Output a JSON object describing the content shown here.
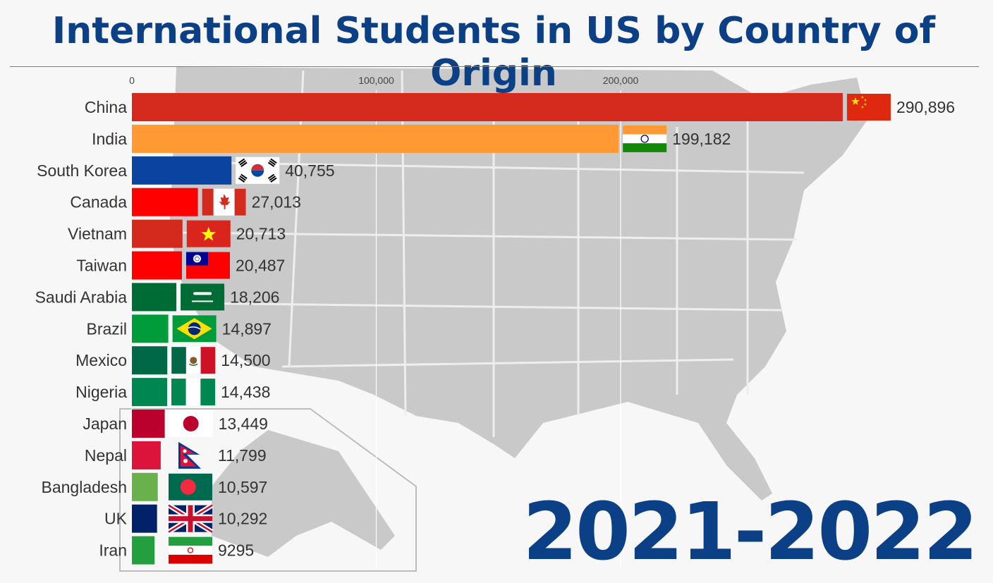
{
  "title": "International Students in US by Country of Origin",
  "year_label": "2021-2022",
  "chart_data": {
    "type": "bar",
    "orientation": "horizontal",
    "title": "International Students in US by Country of Origin",
    "xlabel": "",
    "ylabel": "",
    "xlim": [
      0,
      300000
    ],
    "x_ticks": [
      0,
      100000,
      200000
    ],
    "x_tick_labels": [
      "0",
      "100,000",
      "200,000"
    ],
    "grid": true,
    "categories": [
      "China",
      "India",
      "South Korea",
      "Canada",
      "Vietnam",
      "Taiwan",
      "Saudi Arabia",
      "Brazil",
      "Mexico",
      "Nigeria",
      "Japan",
      "Nepal",
      "Bangladesh",
      "UK",
      "Iran"
    ],
    "values": [
      290896,
      199182,
      40755,
      27013,
      20713,
      20487,
      18206,
      14897,
      14500,
      14438,
      13449,
      11799,
      10597,
      10292,
      9295
    ],
    "value_labels": [
      "290,896",
      "199,182",
      "40,755",
      "27,013",
      "20,713",
      "20,487",
      "18,206",
      "14,897",
      "14,500",
      "14,438",
      "13,449",
      "11,799",
      "10,597",
      "10,292",
      "9295"
    ],
    "colors": [
      "#d52b1e",
      "#ff9933",
      "#0b44a0",
      "#ff0000",
      "#d42a1e",
      "#fe0000",
      "#006c35",
      "#009c3b",
      "#006847",
      "#008751",
      "#bc002d",
      "#dc143c",
      "#6ab04c",
      "#012169",
      "#239f40"
    ],
    "flags": [
      "china-flag",
      "india-flag",
      "south-korea-flag",
      "canada-flag",
      "vietnam-flag",
      "taiwan-flag",
      "saudi-arabia-flag",
      "brazil-flag",
      "mexico-flag",
      "nigeria-flag",
      "japan-flag",
      "nepal-flag",
      "bangladesh-flag",
      "uk-flag",
      "iran-flag"
    ]
  }
}
